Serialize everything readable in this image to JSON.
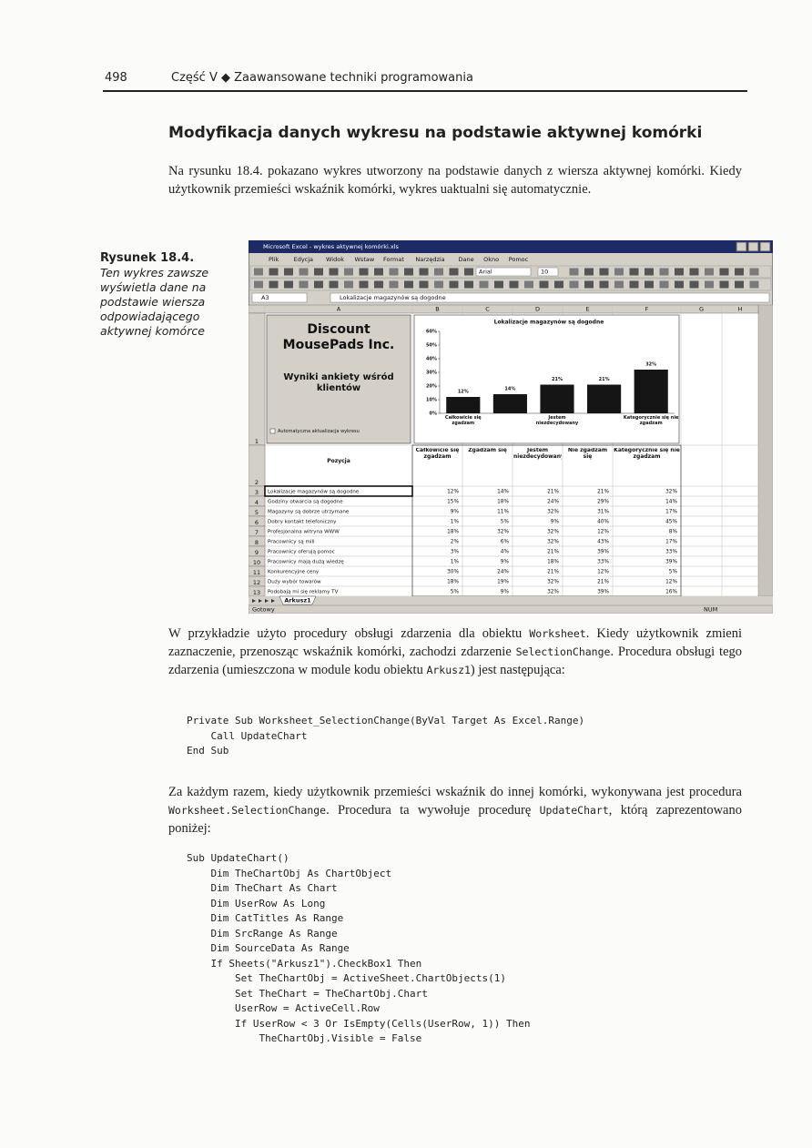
{
  "header": {
    "page_number": "498",
    "running_title": "Część V ◆ Zaawansowane techniki programowania"
  },
  "heading": "Modyfikacja danych wykresu na podstawie aktywnej komórki",
  "paragraphs": [
    [
      "Na rysunku 18.4. pokazano wykres utworzony na podstawie danych z wiersza aktywnej komórki. Kiedy użytkownik przemieści wskaźnik komórki, wykres uaktualni się automatycznie."
    ],
    [
      "W przykładzie użyto procedury obsługi zdarzenia dla obiektu ",
      "Worksheet",
      ". Kiedy użytkownik zmieni zaznaczenie, przenosząc wskaźnik komórki, zachodzi zdarzenie ",
      "SelectionChange",
      ". Procedura obsługi tego zdarzenia (umieszczona w module kodu obiektu ",
      "Arkusz1",
      ") jest następująca:"
    ],
    [
      "Za każdym razem, kiedy użytkownik przemieści wskaźnik do innej komórki, wykonywana jest procedura ",
      "Worksheet.SelectionChange",
      ". Procedura ta wywołuje procedurę ",
      "UpdateChart",
      ", którą zaprezentowano poniżej:"
    ]
  ],
  "figure": {
    "label": "Rysunek 18.4.",
    "caption": "Ten wykres zawsze wyświetla dane na podstawie wiersza odpowiadającego aktywnej komórce"
  },
  "code_blocks": [
    [
      "Private Sub Worksheet_SelectionChange(ByVal Target As Excel.Range)",
      "    Call UpdateChart",
      "End Sub"
    ],
    [
      "Sub UpdateChart()",
      "    Dim TheChartObj As ChartObject",
      "    Dim TheChart As Chart",
      "    Dim UserRow As Long",
      "    Dim CatTitles As Range",
      "    Dim SrcRange As Range",
      "    Dim SourceData As Range",
      "    If Sheets(\"Arkusz1\").CheckBox1 Then",
      "        Set TheChartObj = ActiveSheet.ChartObjects(1)",
      "        Set TheChart = TheChartObj.Chart",
      "        UserRow = ActiveCell.Row",
      "        If UserRow < 3 Or IsEmpty(Cells(UserRow, 1)) Then",
      "            TheChartObj.Visible = False"
    ]
  ],
  "excel": {
    "title_bar": "Microsoft Excel - wykres aktywnej komórki.xls",
    "menu": [
      "Plik",
      "Edycja",
      "Widok",
      "Wstaw",
      "Format",
      "Narzędzia",
      "Dane",
      "Okno",
      "Pomoc"
    ],
    "font": "Arial",
    "font_size": "10",
    "name_box": "A3",
    "formula": "Lokalizacje magazynów są dogodne",
    "columns": [
      "A",
      "B",
      "C",
      "D",
      "E",
      "F",
      "G",
      "H"
    ],
    "row_numbers": [
      "1",
      "2",
      "3",
      "4",
      "5",
      "6",
      "7",
      "8",
      "9",
      "10",
      "11",
      "12",
      "13"
    ],
    "title_box": {
      "company": "Discount MousePads Inc.",
      "subtitle": "Wyniki ankiety wśród klientów",
      "checkbox": "Automatyczna aktualizacja wykresu"
    },
    "chart": {
      "type": "bar",
      "title": "Lokalizacje magazynów są dogodne",
      "categories": [
        "Całkowicie się zgadzam",
        null,
        "Jestem niezdecydowany",
        null,
        "Kategorycznie się nie zgadzam"
      ],
      "values": [
        12,
        14,
        21,
        21,
        32
      ],
      "value_labels": [
        "12%",
        "14%",
        "21%",
        "21%",
        "32%"
      ],
      "color": "#151515",
      "ylim": [
        0,
        60
      ],
      "yticks": [
        {
          "value": 0,
          "label": "0%"
        },
        {
          "value": 10,
          "label": "10%"
        },
        {
          "value": 20,
          "label": "20%"
        },
        {
          "value": 30,
          "label": "30%"
        },
        {
          "value": 40,
          "label": "40%"
        },
        {
          "value": 50,
          "label": "50%"
        },
        {
          "value": 60,
          "label": "60%"
        }
      ]
    },
    "table": {
      "header": [
        "Pozycja",
        "Całkowicie się zgadzam",
        "Zgadzam się",
        "Jestem niezdecydowany",
        "Nie zgadzam się",
        "Kategorycznie się nie zgadzam"
      ],
      "rows": [
        [
          "Lokalizacje magazynów są dogodne",
          "12%",
          "14%",
          "21%",
          "21%",
          "32%"
        ],
        [
          "Godziny otwarcia są dogodne",
          "15%",
          "18%",
          "24%",
          "29%",
          "14%"
        ],
        [
          "Magazyny są dobrze utrzymane",
          "9%",
          "11%",
          "32%",
          "31%",
          "17%"
        ],
        [
          "Dobry kontakt telefoniczny",
          "1%",
          "5%",
          "9%",
          "40%",
          "45%"
        ],
        [
          "Profesjonalna witryna WWW",
          "18%",
          "32%",
          "32%",
          "12%",
          "8%"
        ],
        [
          "Pracownicy są mili",
          "2%",
          "6%",
          "32%",
          "43%",
          "17%"
        ],
        [
          "Pracownicy oferują pomoc",
          "3%",
          "4%",
          "21%",
          "39%",
          "33%"
        ],
        [
          "Pracownicy mają dużą wiedzę",
          "1%",
          "9%",
          "18%",
          "33%",
          "39%"
        ],
        [
          "Konkurencyjne ceny",
          "30%",
          "24%",
          "21%",
          "12%",
          "5%"
        ],
        [
          "Duży wybór towarów",
          "18%",
          "19%",
          "32%",
          "21%",
          "12%"
        ],
        [
          "Podobają mi się reklamy TV",
          "5%",
          "9%",
          "32%",
          "39%",
          "16%"
        ]
      ]
    },
    "sheet_tab": "Arkusz1",
    "status": "Gotowy",
    "status_right": "NUM"
  }
}
